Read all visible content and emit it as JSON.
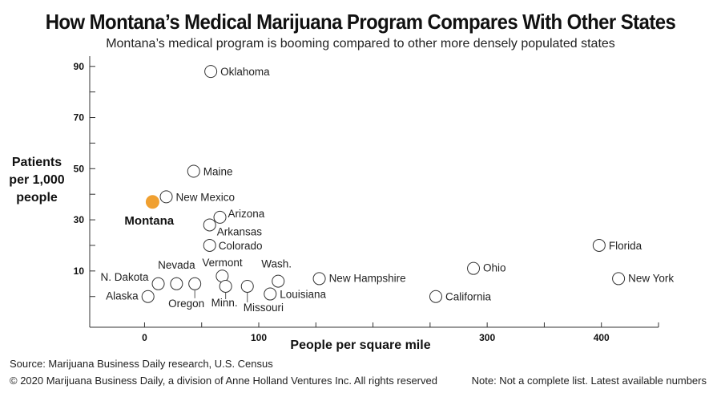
{
  "header": {
    "title": "How Montana’s Medical Marijuana Program Compares With Other States",
    "subtitle": "Montana’s medical program is booming compared to other more densely populated states"
  },
  "footer": {
    "source": "Source: Marijuana Business Daily research, U.S. Census",
    "copyright": "© 2020 Marijuana Business Daily, a division of Anne Holland Ventures Inc. All rights reserved",
    "note": "Note: Not a complete list. Latest available numbers"
  },
  "colors": {
    "highlight": "#f0a030",
    "marker_stroke": "#333333",
    "axis": "#333333",
    "leader_line": "#555555"
  },
  "chart_data": {
    "type": "scatter",
    "xlabel": "People per square mile",
    "ylabel": [
      "Patients",
      "per 1,000",
      "people"
    ],
    "xlim": [
      -48,
      450
    ],
    "ylim": [
      -12,
      94
    ],
    "xticks": [
      0,
      100,
      300,
      400
    ],
    "yticks": [
      10,
      30,
      50,
      70,
      90
    ],
    "yminor_ticks": [
      0,
      20,
      40,
      60,
      80
    ],
    "grid": false,
    "legend": "none",
    "points": [
      {
        "name": "Oklahoma",
        "x": 58,
        "y": 88
      },
      {
        "name": "Maine",
        "x": 43,
        "y": 49
      },
      {
        "name": "New Mexico",
        "x": 19,
        "y": 39
      },
      {
        "name": "Montana",
        "x": 7,
        "y": 37,
        "highlight": true
      },
      {
        "name": "Arizona",
        "x": 66,
        "y": 31
      },
      {
        "name": "Arkansas",
        "x": 57,
        "y": 28
      },
      {
        "name": "Colorado",
        "x": 57,
        "y": 20
      },
      {
        "name": "Vermont",
        "x": 68,
        "y": 8
      },
      {
        "name": "Wash.",
        "x": 117,
        "y": 6
      },
      {
        "name": "New Hampshire",
        "x": 153,
        "y": 7
      },
      {
        "name": "N. Dakota",
        "x": 12,
        "y": 5
      },
      {
        "name": "Nevada",
        "x": 28,
        "y": 5
      },
      {
        "name": "Oregon",
        "x": 44,
        "y": 5
      },
      {
        "name": "Minn.",
        "x": 71,
        "y": 4
      },
      {
        "name": "Missouri",
        "x": 90,
        "y": 4
      },
      {
        "name": "Louisiana",
        "x": 110,
        "y": 1
      },
      {
        "name": "Alaska",
        "x": 3,
        "y": 0
      },
      {
        "name": "California",
        "x": 255,
        "y": 0
      },
      {
        "name": "Ohio",
        "x": 288,
        "y": 11
      },
      {
        "name": "Florida",
        "x": 398,
        "y": 20
      },
      {
        "name": "New York",
        "x": 415,
        "y": 7
      }
    ]
  }
}
